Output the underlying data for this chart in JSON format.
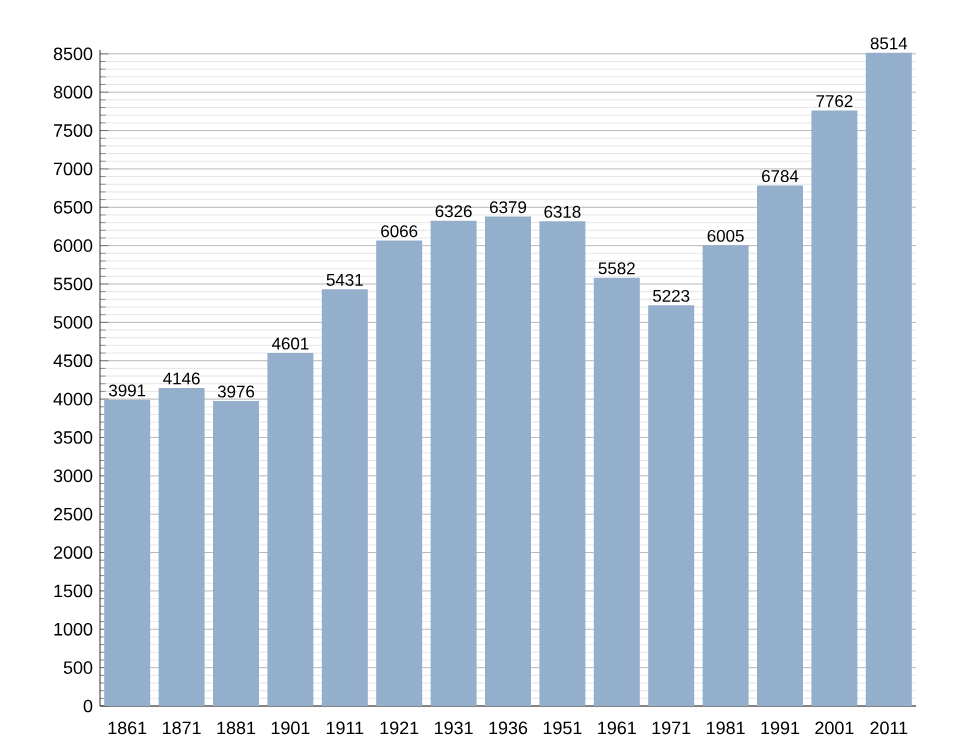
{
  "chart_data": {
    "type": "bar",
    "categories": [
      "1861",
      "1871",
      "1881",
      "1901",
      "1911",
      "1921",
      "1931",
      "1936",
      "1951",
      "1961",
      "1971",
      "1981",
      "1991",
      "2001",
      "2011"
    ],
    "values": [
      3991,
      4146,
      3976,
      4601,
      5431,
      6066,
      6326,
      6379,
      6318,
      5582,
      5223,
      6005,
      6784,
      7762,
      8514
    ],
    "color": "#94afcc",
    "data_labels": true,
    "grid": "y",
    "ylim": [
      0,
      8550
    ],
    "yticks": [
      0,
      500,
      1000,
      1500,
      2000,
      2500,
      3000,
      3500,
      4000,
      4500,
      5000,
      5500,
      6000,
      6500,
      7000,
      7500,
      8000,
      8500
    ]
  }
}
